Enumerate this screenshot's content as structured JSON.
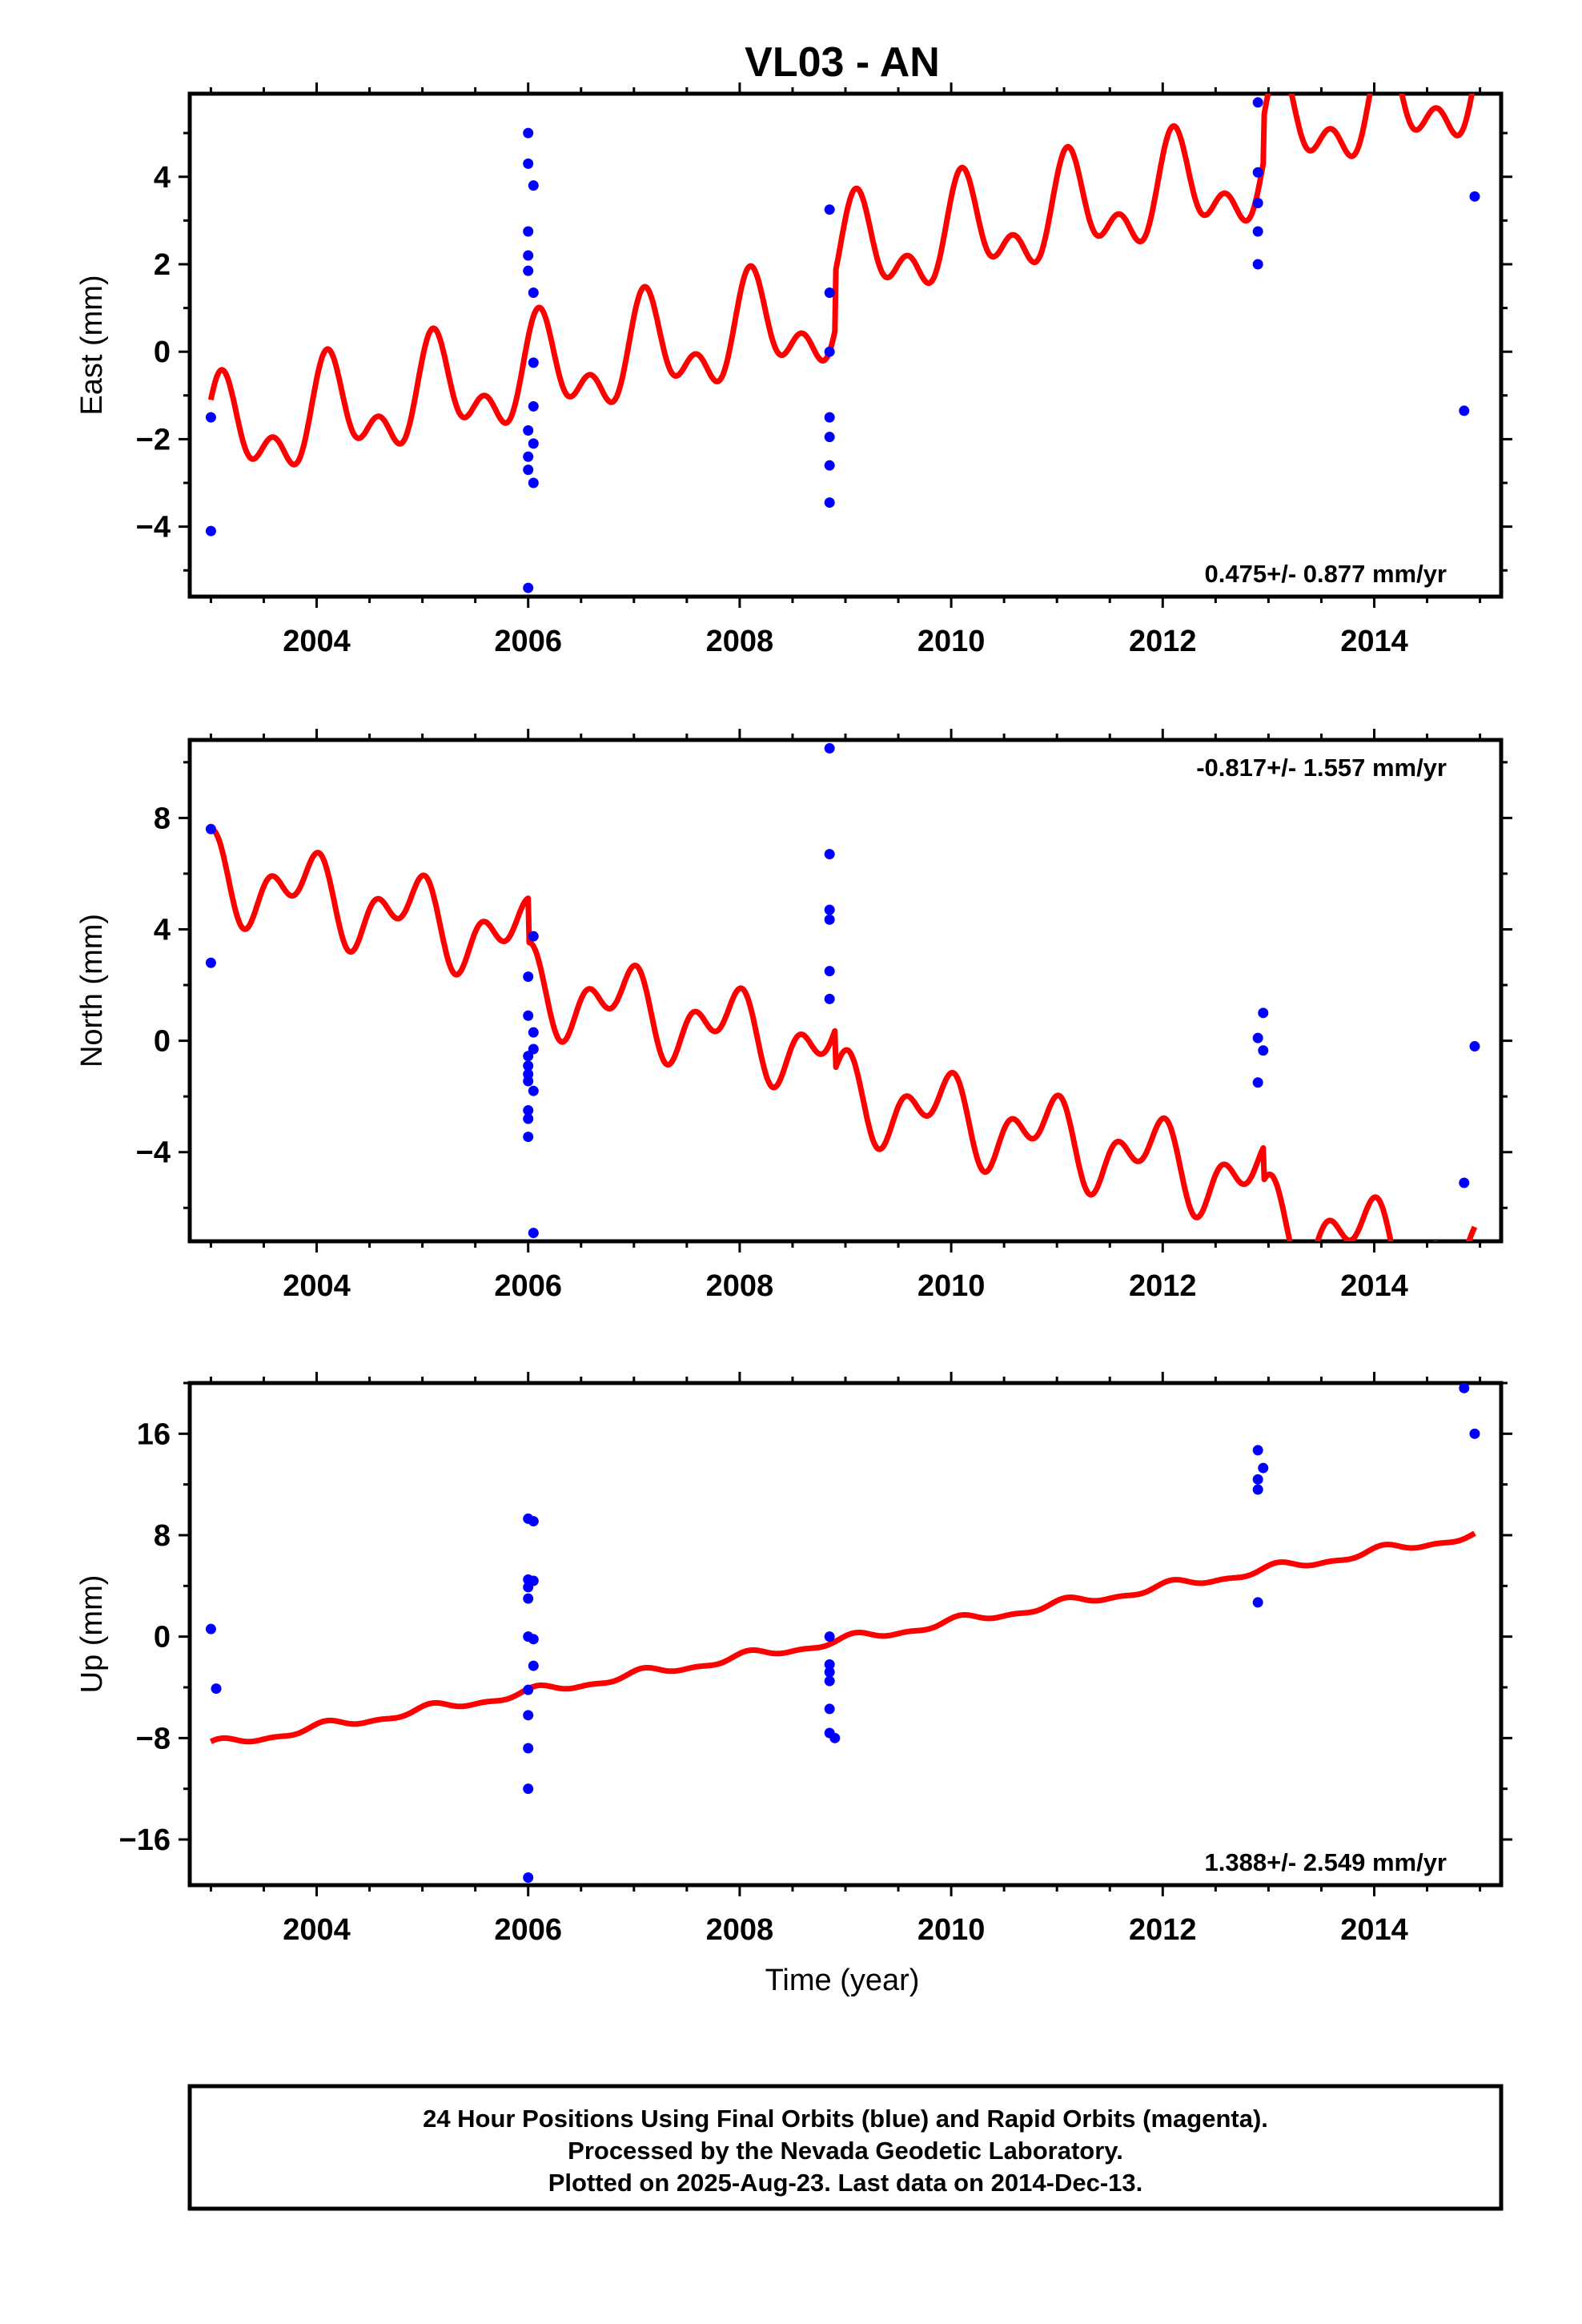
{
  "chart_data": {
    "type": "scatter",
    "title": "VL03 - AN",
    "xlabel": "Time (year)",
    "xlim": [
      2002.8,
      2015.2
    ],
    "x_ticks": [
      "2004",
      "2006",
      "2008",
      "2010",
      "2012",
      "2014"
    ],
    "colors": {
      "final_orbits": "#0000ff",
      "model": "#ff0000",
      "frame": "#000000"
    },
    "panels": [
      {
        "name": "east",
        "ylabel": "East (mm)",
        "ylim": [
          -5.6,
          5.9
        ],
        "y_ticks": [
          "4",
          "2",
          "0",
          "−2",
          "−4"
        ],
        "y_tick_values": [
          4,
          2,
          0,
          -2,
          -4
        ],
        "rate_text": "0.475+/- 0.877 mm/yr",
        "rate_position": "bottom-right",
        "model": {
          "x0": 2003.0,
          "x1": 2014.95,
          "y0": -2.0,
          "slope": 0.475,
          "annual_amp": 0.9,
          "semiannual_amp": 0.65,
          "phase_annual": 0.8,
          "phase_semiannual": 0.4,
          "offsets": [
            {
              "t": 2006.0,
              "dy": 0.0
            },
            {
              "t": 2008.9,
              "dy": 1.3
            },
            {
              "t": 2012.95,
              "dy": 1.0
            }
          ]
        },
        "points": [
          [
            2003.0,
            -1.5
          ],
          [
            2003.0,
            -4.1
          ],
          [
            2006.0,
            5.0
          ],
          [
            2006.0,
            4.3
          ],
          [
            2006.05,
            3.8
          ],
          [
            2006.0,
            2.75
          ],
          [
            2006.0,
            2.2
          ],
          [
            2006.0,
            1.85
          ],
          [
            2006.05,
            1.35
          ],
          [
            2006.05,
            -0.25
          ],
          [
            2006.05,
            -1.25
          ],
          [
            2006.0,
            -1.8
          ],
          [
            2006.05,
            -2.1
          ],
          [
            2006.0,
            -2.4
          ],
          [
            2006.0,
            -2.7
          ],
          [
            2006.05,
            -3.0
          ],
          [
            2006.0,
            -5.4
          ],
          [
            2008.85,
            3.25
          ],
          [
            2008.85,
            1.35
          ],
          [
            2008.85,
            0.0
          ],
          [
            2008.85,
            -1.5
          ],
          [
            2008.85,
            -1.95
          ],
          [
            2008.85,
            -2.6
          ],
          [
            2008.85,
            -3.45
          ],
          [
            2012.9,
            5.7
          ],
          [
            2012.9,
            4.1
          ],
          [
            2012.9,
            3.4
          ],
          [
            2012.9,
            2.75
          ],
          [
            2012.9,
            2.0
          ],
          [
            2014.85,
            -1.35
          ],
          [
            2014.95,
            3.55
          ]
        ]
      },
      {
        "name": "north",
        "ylabel": "North (mm)",
        "ylim": [
          -7.2,
          10.8
        ],
        "y_ticks": [
          "8",
          "4",
          "0",
          "−4"
        ],
        "y_tick_values": [
          8,
          4,
          0,
          -4
        ],
        "rate_text": "-0.817+/- 1.557 mm/yr",
        "rate_position": "top-right",
        "model": {
          "x0": 2003.0,
          "x1": 2014.95,
          "y0": 6.0,
          "slope": -0.817,
          "annual_amp": 1.0,
          "semiannual_amp": 0.9,
          "phase_annual": 2.2,
          "phase_semiannual": 1.0,
          "offsets": [
            {
              "t": 2006.0,
              "dy": -1.6
            },
            {
              "t": 2008.9,
              "dy": -1.4
            },
            {
              "t": 2012.95,
              "dy": -1.2
            }
          ]
        },
        "points": [
          [
            2003.0,
            7.6
          ],
          [
            2003.0,
            2.8
          ],
          [
            2006.05,
            3.75
          ],
          [
            2006.0,
            2.3
          ],
          [
            2006.0,
            0.9
          ],
          [
            2006.05,
            0.3
          ],
          [
            2006.05,
            -0.3
          ],
          [
            2006.0,
            -0.55
          ],
          [
            2006.0,
            -0.9
          ],
          [
            2006.0,
            -1.2
          ],
          [
            2006.0,
            -1.45
          ],
          [
            2006.05,
            -1.8
          ],
          [
            2006.0,
            -2.5
          ],
          [
            2006.0,
            -2.8
          ],
          [
            2006.0,
            -3.45
          ],
          [
            2006.05,
            -6.9
          ],
          [
            2008.85,
            10.5
          ],
          [
            2008.85,
            6.7
          ],
          [
            2008.85,
            4.7
          ],
          [
            2008.85,
            4.35
          ],
          [
            2008.85,
            2.5
          ],
          [
            2008.85,
            1.5
          ],
          [
            2012.95,
            1.0
          ],
          [
            2012.9,
            0.1
          ],
          [
            2012.95,
            -0.35
          ],
          [
            2012.9,
            -1.5
          ],
          [
            2014.85,
            -5.1
          ],
          [
            2014.95,
            -0.2
          ]
        ]
      },
      {
        "name": "up",
        "ylabel": "Up (mm)",
        "ylim": [
          -19.6,
          20.0
        ],
        "y_ticks": [
          "16",
          "8",
          "0",
          "−8",
          "−16"
        ],
        "y_tick_values": [
          16,
          8,
          0,
          -8,
          -16
        ],
        "rate_text": "1.388+/- 2.549 mm/yr",
        "rate_position": "bottom-right",
        "model": {
          "x0": 2003.0,
          "x1": 2014.95,
          "y0": -8.6,
          "slope": 1.388,
          "annual_amp": 0.3,
          "semiannual_amp": 0.15,
          "phase_annual": 1.0,
          "phase_semiannual": 0.5,
          "offsets": []
        },
        "points": [
          [
            2003.0,
            0.6
          ],
          [
            2003.05,
            -4.1
          ],
          [
            2006.0,
            9.3
          ],
          [
            2006.05,
            9.1
          ],
          [
            2006.0,
            4.5
          ],
          [
            2006.05,
            4.4
          ],
          [
            2006.0,
            3.9
          ],
          [
            2006.0,
            3.0
          ],
          [
            2006.0,
            0.0
          ],
          [
            2006.05,
            -0.2
          ],
          [
            2006.05,
            -2.3
          ],
          [
            2006.0,
            -4.2
          ],
          [
            2006.0,
            -6.2
          ],
          [
            2006.0,
            -8.8
          ],
          [
            2006.0,
            -12.0
          ],
          [
            2006.0,
            -19.0
          ],
          [
            2008.85,
            0.0
          ],
          [
            2008.85,
            -2.2
          ],
          [
            2008.85,
            -2.8
          ],
          [
            2008.85,
            -3.5
          ],
          [
            2008.85,
            -5.7
          ],
          [
            2008.85,
            -7.6
          ],
          [
            2008.9,
            -8.0
          ],
          [
            2012.9,
            14.7
          ],
          [
            2012.95,
            13.3
          ],
          [
            2012.9,
            12.4
          ],
          [
            2012.9,
            11.6
          ],
          [
            2012.9,
            2.7
          ],
          [
            2014.85,
            19.6
          ],
          [
            2014.95,
            16.0
          ]
        ]
      }
    ],
    "footer_lines": [
      "24 Hour Positions Using Final Orbits (blue) and Rapid Orbits (magenta).",
      "Processed by the Nevada Geodetic Laboratory.",
      "Plotted on 2025-Aug-23. Last data on 2014-Dec-13."
    ]
  }
}
